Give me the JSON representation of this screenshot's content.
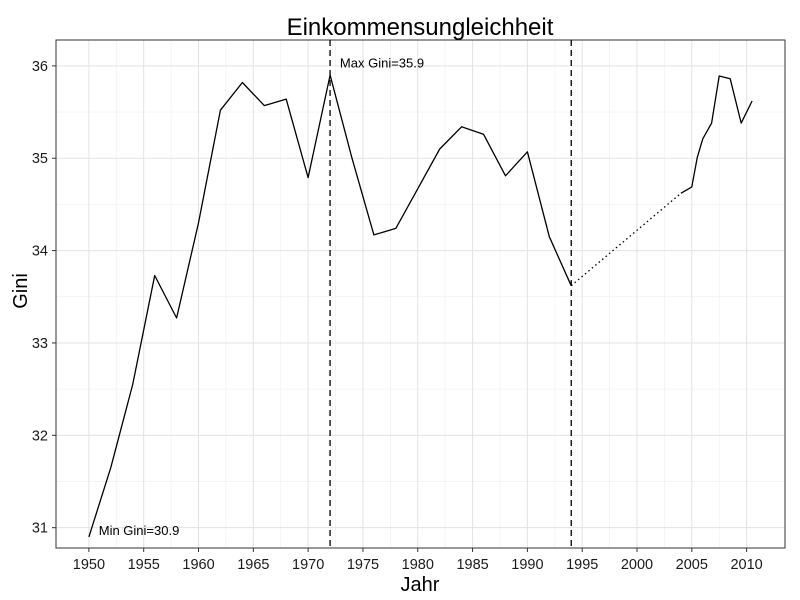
{
  "chart_data": {
    "type": "line",
    "title": "Einkommensungleichheit",
    "xlabel": "Jahr",
    "ylabel": "Gini",
    "xlim": [
      1947,
      2013.5
    ],
    "ylim": [
      30.78,
      36.28
    ],
    "x_ticks": [
      1950,
      1955,
      1960,
      1965,
      1970,
      1975,
      1980,
      1985,
      1990,
      1995,
      2000,
      2005,
      2010
    ],
    "y_ticks": [
      31,
      32,
      33,
      34,
      35,
      36
    ],
    "grid": true,
    "series": [
      {
        "style": "solid",
        "points": [
          [
            1950,
            30.9
          ],
          [
            1952,
            31.65
          ],
          [
            1954,
            32.55
          ],
          [
            1956,
            33.73
          ],
          [
            1958,
            33.27
          ],
          [
            1960,
            34.3
          ],
          [
            1962,
            35.52
          ],
          [
            1964,
            35.82
          ],
          [
            1966,
            35.57
          ],
          [
            1968,
            35.64
          ],
          [
            1970,
            34.79
          ],
          [
            1972,
            35.9
          ],
          [
            1974,
            35.0
          ],
          [
            1976,
            34.17
          ],
          [
            1978,
            34.24
          ],
          [
            1980,
            34.67
          ],
          [
            1982,
            35.1
          ],
          [
            1984,
            35.34
          ],
          [
            1986,
            35.26
          ],
          [
            1988,
            34.81
          ],
          [
            1990,
            35.07
          ],
          [
            1992,
            34.15
          ],
          [
            1994,
            33.62
          ]
        ]
      },
      {
        "style": "dotted",
        "points": [
          [
            1994,
            33.62
          ],
          [
            2004,
            34.62
          ]
        ]
      },
      {
        "style": "solid",
        "points": [
          [
            2004,
            34.62
          ],
          [
            2005,
            34.69
          ],
          [
            2005.5,
            35.01
          ],
          [
            2006,
            35.21
          ],
          [
            2006.8,
            35.38
          ],
          [
            2007.5,
            35.89
          ],
          [
            2008.5,
            35.86
          ],
          [
            2009.5,
            35.38
          ],
          [
            2010.5,
            35.62
          ]
        ]
      }
    ],
    "vlines": [
      {
        "x": 1972,
        "style": "dashed"
      },
      {
        "x": 1994,
        "style": "dashed"
      }
    ],
    "annotations": [
      {
        "x": 1972.9,
        "y": 35.98,
        "text": "Max Gini=35.9"
      },
      {
        "x": 1950.9,
        "y": 30.92,
        "text": "Min Gini=30.9"
      }
    ]
  }
}
